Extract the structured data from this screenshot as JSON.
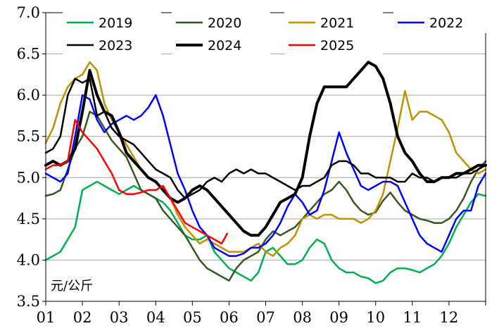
{
  "chart_data": {
    "type": "line",
    "title": "",
    "xlabel": "",
    "ylabel": "",
    "unit_label": "元/公斤",
    "ylim": [
      3.5,
      7.0
    ],
    "y_ticks": [
      "3.5",
      "4.0",
      "4.5",
      "5.0",
      "5.5",
      "6.0",
      "6.5",
      "7.0"
    ],
    "x_ticks": [
      "01",
      "02",
      "03",
      "04",
      "05",
      "06",
      "07",
      "08",
      "09",
      "10",
      "11",
      "12"
    ],
    "grid": "horizontal",
    "legend_position": "top",
    "series": [
      {
        "name": "2019",
        "color": "#00B050",
        "width": 2.5,
        "x": [
          1,
          1.2,
          1.4,
          1.6,
          1.8,
          2.0,
          2.2,
          2.4,
          2.6,
          2.8,
          3.0,
          3.2,
          3.4,
          3.6,
          3.8,
          4.0,
          4.2,
          4.4,
          4.6,
          4.8,
          5.0,
          5.2,
          5.4,
          5.6,
          5.8,
          6.0,
          6.2,
          6.4,
          6.6,
          6.8,
          7.0,
          7.2,
          7.4,
          7.6,
          7.8,
          8.0,
          8.2,
          8.4,
          8.6,
          8.8,
          9.0,
          9.2,
          9.4,
          9.6,
          9.8,
          10.0,
          10.2,
          10.4,
          10.6,
          10.8,
          11.0,
          11.2,
          11.4,
          11.6,
          11.8,
          12.0,
          12.2,
          12.4,
          12.6,
          12.8,
          13.0
        ],
        "y": [
          4.0,
          4.05,
          4.1,
          4.25,
          4.4,
          4.85,
          4.9,
          4.95,
          4.9,
          4.85,
          4.8,
          4.85,
          4.9,
          4.85,
          4.8,
          4.75,
          4.7,
          4.6,
          4.45,
          4.3,
          4.25,
          4.25,
          4.3,
          4.1,
          4.0,
          3.9,
          3.85,
          3.8,
          3.75,
          3.85,
          4.1,
          4.15,
          4.05,
          3.95,
          3.95,
          4.0,
          4.15,
          4.25,
          4.2,
          4.0,
          3.9,
          3.85,
          3.85,
          3.8,
          3.78,
          3.72,
          3.75,
          3.85,
          3.9,
          3.9,
          3.88,
          3.85,
          3.9,
          3.95,
          4.05,
          4.2,
          4.4,
          4.55,
          4.7,
          4.8,
          4.78
        ]
      },
      {
        "name": "2020",
        "color": "#375623",
        "width": 2.5,
        "x": [
          1,
          1.2,
          1.4,
          1.6,
          1.8,
          2.0,
          2.2,
          2.4,
          2.6,
          2.8,
          3.0,
          3.2,
          3.4,
          3.6,
          3.8,
          4.0,
          4.2,
          4.4,
          4.6,
          4.8,
          5.0,
          5.2,
          5.4,
          5.6,
          5.8,
          6.0,
          6.2,
          6.4,
          6.6,
          6.8,
          7.0,
          7.2,
          7.4,
          7.6,
          7.8,
          8.0,
          8.2,
          8.4,
          8.6,
          8.8,
          9.0,
          9.2,
          9.4,
          9.6,
          9.8,
          10.0,
          10.2,
          10.4,
          10.6,
          10.8,
          11.0,
          11.2,
          11.4,
          11.6,
          11.8,
          12.0,
          12.2,
          12.4,
          12.6,
          12.8,
          13.0
        ],
        "y": [
          4.78,
          4.8,
          4.85,
          5.1,
          5.35,
          5.5,
          5.8,
          5.75,
          5.6,
          5.45,
          5.35,
          5.25,
          5.05,
          4.85,
          4.8,
          4.75,
          4.6,
          4.5,
          4.4,
          4.3,
          4.15,
          4.0,
          3.9,
          3.85,
          3.8,
          3.75,
          3.9,
          4.0,
          4.05,
          4.1,
          4.25,
          4.35,
          4.3,
          4.35,
          4.4,
          4.5,
          4.6,
          4.7,
          4.8,
          4.85,
          4.95,
          4.85,
          4.7,
          4.6,
          4.55,
          4.58,
          4.72,
          4.82,
          4.7,
          4.6,
          4.55,
          4.5,
          4.48,
          4.45,
          4.45,
          4.5,
          4.6,
          4.75,
          4.95,
          5.1,
          5.2
        ]
      },
      {
        "name": "2021",
        "color": "#BF9000",
        "width": 2.5,
        "x": [
          1,
          1.2,
          1.4,
          1.6,
          1.8,
          2.0,
          2.2,
          2.4,
          2.6,
          2.8,
          3.0,
          3.2,
          3.4,
          3.6,
          3.8,
          4.0,
          4.2,
          4.4,
          4.6,
          4.8,
          5.0,
          5.2,
          5.4,
          5.6,
          5.8,
          6.0,
          6.2,
          6.4,
          6.6,
          6.8,
          7.0,
          7.2,
          7.4,
          7.6,
          7.8,
          8.0,
          8.2,
          8.4,
          8.6,
          8.8,
          9.0,
          9.2,
          9.4,
          9.6,
          9.8,
          10.0,
          10.2,
          10.4,
          10.6,
          10.8,
          11.0,
          11.2,
          11.4,
          11.6,
          11.8,
          12.0,
          12.2,
          12.4,
          12.6,
          12.8,
          13.0
        ],
        "y": [
          5.42,
          5.6,
          5.9,
          6.1,
          6.2,
          6.25,
          6.4,
          6.3,
          5.9,
          5.7,
          5.55,
          5.4,
          5.25,
          5.1,
          5.0,
          4.95,
          4.85,
          4.75,
          4.55,
          4.4,
          4.3,
          4.2,
          4.25,
          4.2,
          4.15,
          4.1,
          4.1,
          4.1,
          4.15,
          4.2,
          4.1,
          4.05,
          4.15,
          4.2,
          4.3,
          4.5,
          4.55,
          4.5,
          4.55,
          4.55,
          4.5,
          4.5,
          4.5,
          4.45,
          4.5,
          4.6,
          4.8,
          5.2,
          5.6,
          6.05,
          5.7,
          5.8,
          5.8,
          5.75,
          5.7,
          5.55,
          5.3,
          5.2,
          5.1,
          5.05,
          5.1
        ]
      },
      {
        "name": "2022",
        "color": "#0000FF",
        "width": 2.5,
        "x": [
          1,
          1.2,
          1.4,
          1.6,
          1.8,
          2.0,
          2.2,
          2.4,
          2.6,
          2.8,
          3.0,
          3.2,
          3.4,
          3.6,
          3.8,
          4.0,
          4.2,
          4.4,
          4.6,
          4.8,
          5.0,
          5.2,
          5.4,
          5.6,
          5.8,
          6.0,
          6.2,
          6.4,
          6.6,
          6.8,
          7.0,
          7.2,
          7.4,
          7.6,
          7.8,
          8.0,
          8.2,
          8.4,
          8.6,
          8.8,
          9.0,
          9.2,
          9.4,
          9.6,
          9.8,
          10.0,
          10.2,
          10.4,
          10.6,
          10.8,
          11.0,
          11.2,
          11.4,
          11.6,
          11.8,
          12.0,
          12.2,
          12.4,
          12.6,
          12.8,
          13.0
        ],
        "y": [
          5.05,
          5.0,
          4.95,
          5.05,
          5.5,
          6.0,
          5.95,
          5.7,
          5.55,
          5.65,
          5.7,
          5.75,
          5.7,
          5.75,
          5.85,
          6.0,
          5.75,
          5.4,
          5.05,
          4.85,
          4.6,
          4.4,
          4.3,
          4.15,
          4.1,
          4.05,
          4.05,
          4.08,
          4.15,
          4.15,
          4.2,
          4.3,
          4.45,
          4.65,
          4.8,
          4.7,
          4.55,
          4.6,
          4.85,
          5.2,
          5.55,
          5.3,
          5.1,
          4.9,
          4.85,
          4.9,
          4.95,
          4.95,
          4.9,
          4.7,
          4.5,
          4.3,
          4.2,
          4.15,
          4.1,
          4.3,
          4.5,
          4.6,
          4.6,
          4.9,
          5.05
        ]
      },
      {
        "name": "2023",
        "color": "#000000",
        "width": 2.5,
        "x": [
          1,
          1.2,
          1.4,
          1.6,
          1.8,
          2.0,
          2.2,
          2.4,
          2.6,
          2.8,
          3.0,
          3.2,
          3.4,
          3.6,
          3.8,
          4.0,
          4.2,
          4.4,
          4.6,
          4.8,
          5.0,
          5.2,
          5.4,
          5.6,
          5.8,
          6.0,
          6.2,
          6.4,
          6.6,
          6.8,
          7.0,
          7.2,
          7.4,
          7.6,
          7.8,
          8.0,
          8.2,
          8.4,
          8.6,
          8.8,
          9.0,
          9.2,
          9.4,
          9.6,
          9.8,
          10.0,
          10.2,
          10.4,
          10.6,
          10.8,
          11.0,
          11.2,
          11.4,
          11.6,
          11.8,
          12.0,
          12.2,
          12.4,
          12.6,
          12.8,
          13.0
        ],
        "y": [
          5.3,
          5.35,
          5.5,
          6.0,
          6.2,
          6.15,
          6.2,
          5.75,
          5.8,
          5.6,
          5.5,
          5.45,
          5.4,
          5.3,
          5.2,
          5.1,
          5.05,
          5.0,
          4.85,
          4.75,
          4.8,
          4.85,
          4.95,
          5.0,
          4.95,
          5.05,
          5.1,
          5.05,
          5.1,
          5.05,
          5.05,
          5.0,
          4.95,
          4.9,
          4.85,
          4.9,
          4.9,
          4.95,
          5.0,
          5.15,
          5.2,
          5.2,
          5.15,
          5.05,
          5.05,
          5.0,
          5.0,
          5.0,
          4.95,
          4.95,
          5.05,
          5.0,
          5.0,
          4.95,
          5.0,
          5.0,
          5.0,
          5.05,
          5.05,
          5.1,
          5.15
        ]
      },
      {
        "name": "2024",
        "color": "#000000",
        "width": 4,
        "x": [
          1,
          1.2,
          1.4,
          1.6,
          1.8,
          2.0,
          2.2,
          2.4,
          2.6,
          2.8,
          3.0,
          3.2,
          3.4,
          3.6,
          3.8,
          4.0,
          4.2,
          4.4,
          4.6,
          4.8,
          5.0,
          5.2,
          5.4,
          5.6,
          5.8,
          6.0,
          6.2,
          6.4,
          6.6,
          6.8,
          7.0,
          7.2,
          7.4,
          7.6,
          7.8,
          8.0,
          8.2,
          8.4,
          8.6,
          8.8,
          9.0,
          9.2,
          9.4,
          9.6,
          9.8,
          10.0,
          10.2,
          10.4,
          10.6,
          10.8,
          11.0,
          11.2,
          11.4,
          11.6,
          11.8,
          12.0,
          12.2,
          12.4,
          12.6,
          12.8,
          13.0
        ],
        "y": [
          5.15,
          5.2,
          5.15,
          5.2,
          5.35,
          5.8,
          6.3,
          6.0,
          5.8,
          5.75,
          5.55,
          5.3,
          5.2,
          5.1,
          5.0,
          4.95,
          4.85,
          4.75,
          4.7,
          4.75,
          4.85,
          4.9,
          4.85,
          4.75,
          4.65,
          4.55,
          4.45,
          4.35,
          4.3,
          4.3,
          4.4,
          4.55,
          4.7,
          4.75,
          4.8,
          5.0,
          5.5,
          5.9,
          6.1,
          6.1,
          6.1,
          6.1,
          6.2,
          6.3,
          6.4,
          6.35,
          6.2,
          5.9,
          5.5,
          5.3,
          5.2,
          5.05,
          4.95,
          4.95,
          5.0,
          5.0,
          5.05,
          5.05,
          5.1,
          5.15,
          5.15
        ]
      },
      {
        "name": "2025",
        "color": "#FF0000",
        "width": 2.5,
        "x": [
          1,
          1.2,
          1.4,
          1.6,
          1.8,
          2.0,
          2.2,
          2.4,
          2.6,
          2.8,
          3.0,
          3.2,
          3.4,
          3.6,
          3.8,
          4.0,
          4.2,
          4.4,
          4.6,
          4.8,
          5.0,
          5.2,
          5.4,
          5.6,
          5.8,
          5.95
        ],
        "y": [
          5.1,
          5.15,
          5.15,
          5.2,
          5.7,
          5.55,
          5.45,
          5.35,
          5.2,
          5.05,
          4.85,
          4.8,
          4.8,
          4.82,
          4.85,
          4.85,
          4.9,
          4.75,
          4.6,
          4.45,
          4.4,
          4.35,
          4.3,
          4.25,
          4.2,
          4.32
        ]
      }
    ]
  }
}
